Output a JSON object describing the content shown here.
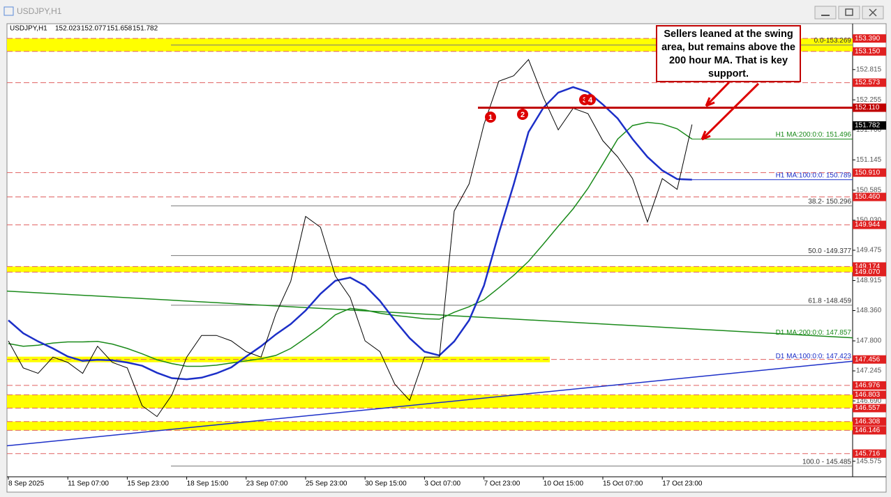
{
  "window": {
    "title": "USDJPY,H1"
  },
  "chart_data": {
    "type": "line",
    "header": {
      "symbol": "USDJPY,H1",
      "ohlc": [
        152.023,
        152.077,
        151.658,
        151.782
      ]
    },
    "categories": [
      "8 Sep 2025",
      null,
      null,
      null,
      "11 Sep 07:00",
      null,
      null,
      null,
      "15 Sep 23:00",
      null,
      null,
      null,
      "18 Sep 15:00",
      null,
      null,
      null,
      "23 Sep 07:00",
      null,
      null,
      null,
      "25 Sep 23:00",
      null,
      null,
      null,
      "30 Sep 15:00",
      null,
      null,
      null,
      "3 Oct 07:00",
      null,
      null,
      null,
      "7 Oct 23:00",
      null,
      null,
      null,
      "10 Oct 15:00",
      null,
      null,
      null,
      "15 Oct 07:00",
      null,
      null,
      null,
      "17 Oct 23:00",
      null,
      null
    ],
    "values": [
      147.8,
      147.3,
      147.2,
      147.5,
      147.4,
      147.2,
      147.7,
      147.4,
      147.3,
      146.6,
      146.4,
      146.8,
      147.5,
      147.9,
      147.9,
      147.8,
      147.6,
      147.5,
      148.3,
      148.9,
      150.1,
      149.9,
      149.0,
      148.6,
      147.8,
      147.6,
      147.0,
      146.7,
      147.5,
      147.5,
      150.2,
      150.7,
      151.8,
      152.6,
      152.7,
      153.0,
      152.3,
      151.7,
      152.1,
      152.0,
      151.5,
      151.2,
      150.8,
      150.0,
      150.8,
      150.6,
      151.8
    ],
    "color": "#000000",
    "series": [
      {
        "name": "H1 MA:200:0:0: 151.496",
        "color": "#1a8a1a",
        "values": [
          147.75,
          147.7,
          147.72,
          147.76,
          147.78,
          147.78,
          147.79,
          147.74,
          147.66,
          147.56,
          147.45,
          147.38,
          147.33,
          147.33,
          147.35,
          147.39,
          147.43,
          147.47,
          147.53,
          147.66,
          147.85,
          148.05,
          148.28,
          148.4,
          148.37,
          148.31,
          148.27,
          148.24,
          148.21,
          148.2,
          148.33,
          148.43,
          148.56,
          148.78,
          149.01,
          149.27,
          149.59,
          149.92,
          150.24,
          150.62,
          151.07,
          151.53,
          151.78,
          151.84,
          151.81,
          151.72,
          151.53
        ]
      },
      {
        "name": "H1 MA:100:0:0: 150.789",
        "color": "#1c2fc8",
        "values": [
          148.18,
          147.94,
          147.79,
          147.66,
          147.51,
          147.43,
          147.45,
          147.44,
          147.4,
          147.34,
          147.21,
          147.11,
          147.09,
          147.12,
          147.2,
          147.31,
          147.51,
          147.7,
          147.92,
          148.11,
          148.36,
          148.67,
          148.91,
          148.97,
          148.82,
          148.54,
          148.18,
          147.85,
          147.6,
          147.53,
          147.79,
          148.18,
          148.82,
          149.79,
          150.69,
          151.66,
          152.11,
          152.39,
          152.49,
          152.4,
          152.17,
          151.91,
          151.53,
          151.2,
          150.95,
          150.79,
          150.78
        ]
      }
    ],
    "ma_lines": [
      {
        "name": "D1 MA:200:0:0: 147.857",
        "color": "#1a8a1a",
        "start": 148.72,
        "end": 147.857
      },
      {
        "name": "D1 MA:100:0:0: 147.423",
        "color": "#1c2fc8",
        "start": 145.86,
        "end": 147.423
      }
    ],
    "ylim": [
      145.3,
      153.65
    ],
    "yticks": [
      152.815,
      152.255,
      {
        "value": 151.7,
        "label": "151.700"
      },
      151.145,
      150.585,
      {
        "value": 150.03,
        "label": "150.030"
      },
      149.475,
      148.915,
      {
        "value": 148.36,
        "label": "148.360"
      },
      {
        "value": 147.8,
        "label": "147.800"
      },
      147.245,
      {
        "value": 146.69,
        "label": "146.690"
      },
      145.575
    ],
    "levels": [
      {
        "value": 152.573,
        "label": "152.573"
      },
      {
        "value": 150.91,
        "label": "150.910"
      },
      {
        "value": 150.46,
        "label": "150.460"
      },
      {
        "value": 149.944,
        "label": "149.944"
      },
      {
        "value": 146.976,
        "label": "146.976"
      },
      {
        "value": 145.716,
        "label": "145.716"
      }
    ],
    "key_level": {
      "value": 152.11,
      "label": "152.110"
    },
    "zones": [
      [
        {
          "value": 153.39,
          "label": "153.390"
        },
        {
          "value": 153.15,
          "label": "153.150"
        }
      ],
      [
        {
          "value": 149.174,
          "label": "149.174"
        },
        {
          "value": 149.07,
          "label": "149.070"
        }
      ],
      [
        {
          "value": 147.456,
          "label": "147.456"
        }
      ],
      [
        {
          "value": 146.803,
          "label": "146.803"
        },
        {
          "value": 146.557,
          "label": "146.557"
        }
      ],
      [
        {
          "value": 146.308,
          "label": "146.308"
        },
        {
          "value": 146.146,
          "label": "146.146"
        }
      ]
    ],
    "fib": [
      {
        "label": "0.0-153.269",
        "value": 153.269
      },
      {
        "label": "38.2- 150.296",
        "value": 150.296
      },
      {
        "label": "50.0 -149.377",
        "value": 149.377
      },
      {
        "label": "61.8 -148.459",
        "value": 148.459
      },
      {
        "label": "100.0 - 145.485",
        "value": 145.485
      }
    ],
    "annotation": "Sellers leaned at the swing area, but remains above the 200 hour MA.  That is key support.",
    "markers": [
      "1",
      "2",
      "3",
      "4"
    ]
  }
}
